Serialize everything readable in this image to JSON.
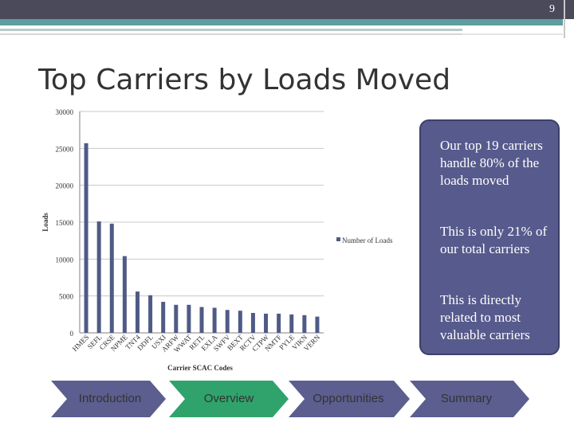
{
  "page_number": "9",
  "title": "Top Carriers by Loads Moved",
  "callouts": [
    "Our top 19 carriers handle 80% of the loads moved",
    "This is only 21% of our total carriers",
    "This is directly related to most valuable carriers"
  ],
  "nav": [
    {
      "label": "Introduction",
      "active": false
    },
    {
      "label": "Overview",
      "active": true
    },
    {
      "label": "Opportunities",
      "active": false
    },
    {
      "label": "Summary",
      "active": false
    }
  ],
  "colors": {
    "bar": "#4f5b86",
    "callout_bg": "#575a8c",
    "nav_active": "#2fa36b",
    "nav_inactive": "#5b5e8f"
  },
  "chart_data": {
    "type": "bar",
    "xlabel": "Carrier SCAC Codes",
    "ylabel": "Loads",
    "ylim": [
      0,
      30000
    ],
    "yticks": [
      0,
      5000,
      10000,
      15000,
      20000,
      25000,
      30000
    ],
    "grid": true,
    "legend_position": "right",
    "categories": [
      "HMES",
      "SEFL",
      "CRSE",
      "NPME",
      "TNT4",
      "DDFL",
      "USXI",
      "ARFW",
      "WWAT",
      "RETL",
      "EXLA",
      "SWFV",
      "BEXT",
      "RCTV",
      "CTPW",
      "NMTF",
      "PYLE",
      "VIKN",
      "VERN"
    ],
    "series": [
      {
        "name": "Number of Loads",
        "values": [
          25700,
          15100,
          14800,
          10400,
          5600,
          5100,
          4200,
          3800,
          3800,
          3500,
          3400,
          3100,
          3000,
          2700,
          2600,
          2600,
          2500,
          2400,
          2200
        ]
      }
    ]
  }
}
